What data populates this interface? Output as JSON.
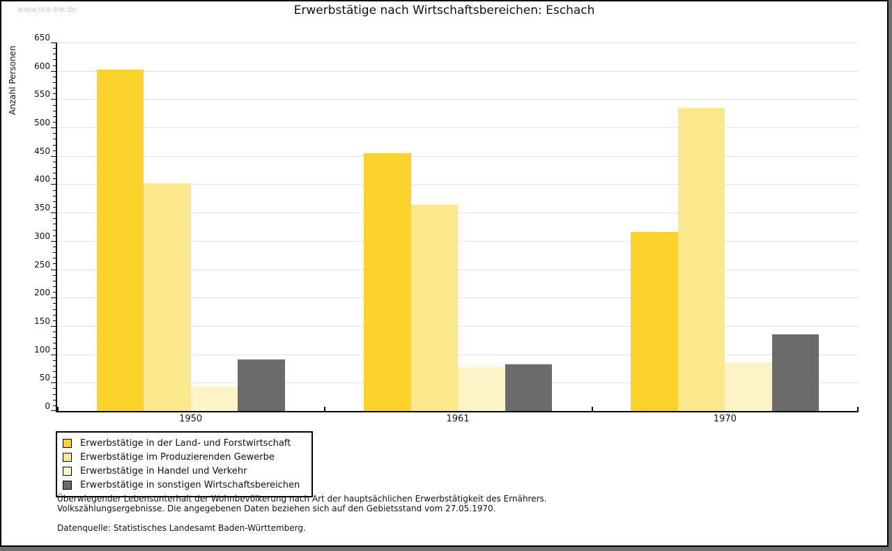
{
  "watermark": "www.leo-bw.de",
  "header": {
    "title": "Erwerbstätige nach Wirtschaftsbereichen: Eschach"
  },
  "chart_data": {
    "type": "bar",
    "title": "Erwerbstätige nach Wirtschaftsbereichen: Eschach",
    "xlabel": "",
    "ylabel": "Anzahl Personen",
    "categories": [
      "1950",
      "1961",
      "1970"
    ],
    "series": [
      {
        "name": "Erwerbstätige in der Land- und Forstwirtschaft",
        "color": "#fcd32b",
        "values": [
          602,
          455,
          316
        ]
      },
      {
        "name": "Erwerbstätige im Produzierenden Gewerbe",
        "color": "#fbe78c",
        "values": [
          402,
          364,
          535
        ]
      },
      {
        "name": "Erwerbstätige in Handel und Verkehr",
        "color": "#fcf3c7",
        "values": [
          43,
          77,
          86
        ]
      },
      {
        "name": "Erwerbstätige in sonstigen Wirtschaftsbereichen",
        "color": "#6b6b6b",
        "values": [
          91,
          82,
          135
        ]
      }
    ],
    "ylim": [
      0,
      650
    ],
    "ytick_step": 50,
    "ytick_minor_step": 10,
    "grid": true,
    "gridline_color": "#e2e2e2",
    "legend_position": "bottom-left"
  },
  "footnotes": {
    "line1": "Überwiegender Lebensunterhalt der Wohnbevölkerung nach Art der hauptsächlichen Erwerbstätigkeit des Ernährers.",
    "line2": "Volkszählungsergebnisse. Die angegebenen Daten beziehen sich auf den Gebietsstand vom 27.05.1970.",
    "source": "Datenquelle: Statistisches Landesamt Baden-Württemberg."
  }
}
